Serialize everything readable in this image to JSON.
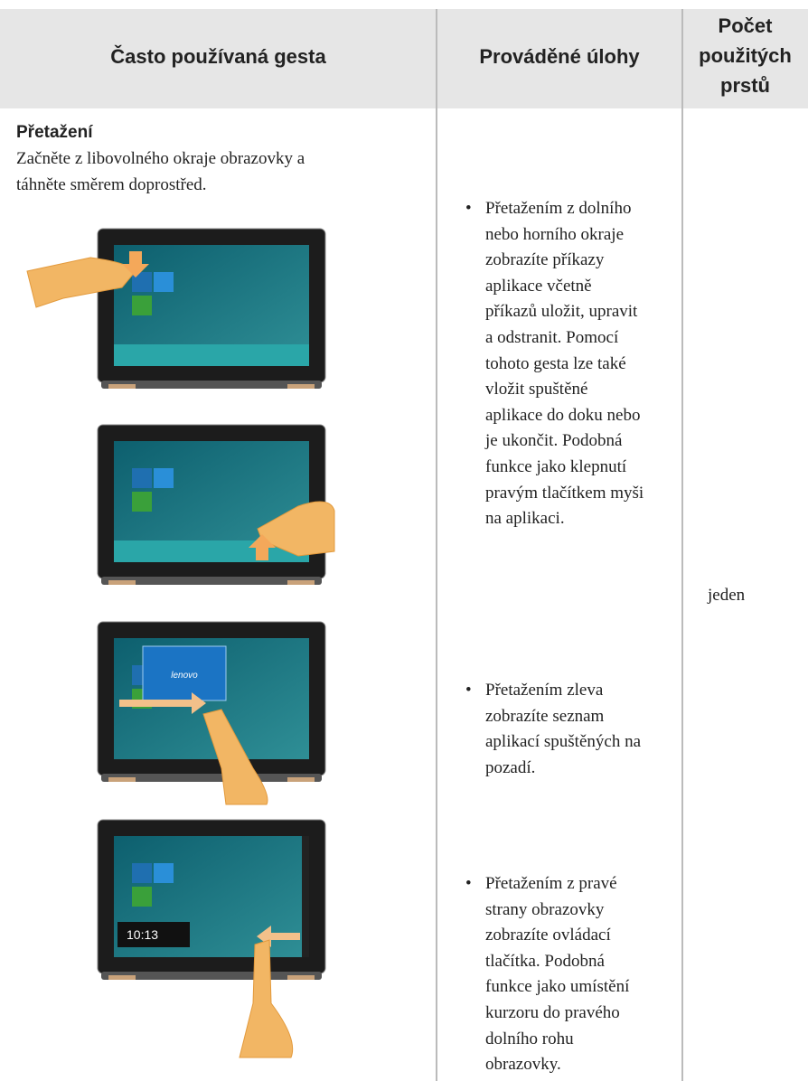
{
  "header": {
    "columns": [
      {
        "lines": [
          "Často používaná gesta"
        ]
      },
      {
        "lines": [
          "Prováděné úlohy"
        ]
      },
      {
        "lines": [
          "Počet",
          "použitých",
          "prstů"
        ]
      }
    ]
  },
  "row": {
    "gesture_title": "Přetažení",
    "gesture_description": [
      "Začněte z libovolného okraje obrazovky a",
      "táhněte směrem doprostřed."
    ],
    "images": [
      {},
      {},
      {
        "brand": "lenovo"
      },
      {
        "clock": "10:13"
      }
    ],
    "tasks": [
      {
        "lines": [
          "Přetažením z dolního",
          "nebo horního okraje",
          "zobrazíte příkazy",
          "aplikace včetně",
          "příkazů uložit, upravit",
          "a odstranit. Pomocí",
          "tohoto gesta lze také",
          "vložit spuštěné",
          "aplikace do doku nebo",
          "je ukončit. Podobná",
          "funkce jako klepnutí",
          "pravým tlačítkem myši",
          "na aplikaci."
        ]
      },
      {
        "lines": [
          "Přetažením zleva",
          "zobrazíte seznam",
          "aplikací spuštěných na",
          "pozadí."
        ]
      },
      {
        "lines": [
          "Přetažením z pravé",
          "strany obrazovky",
          "zobrazíte ovládací",
          "tlačítka. Podobná",
          "funkce jako umístění",
          "kurzoru do pravého",
          "dolního rohu",
          "obrazovky."
        ]
      }
    ],
    "fingers": "jeden"
  }
}
